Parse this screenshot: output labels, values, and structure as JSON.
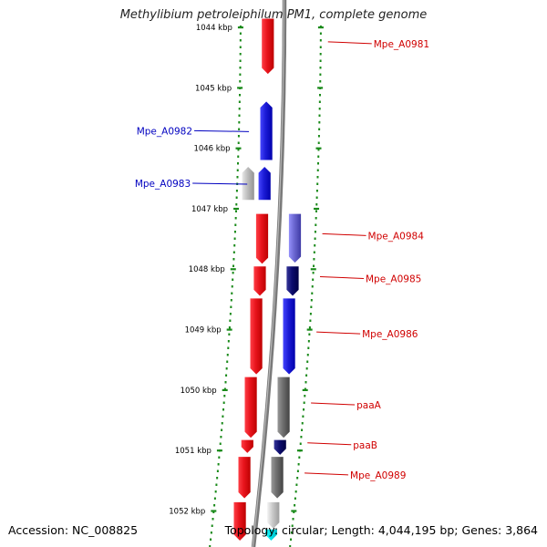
{
  "title": "Methylibium petroleiphilum PM1, complete genome",
  "footer": {
    "accession_label": "Accession:",
    "accession": "NC_008825",
    "topology_label": "Topology:",
    "topology": "circular;",
    "length_label": "Length:",
    "length": "4,044,195 bp;",
    "genes_label": "Genes:",
    "genes": "3,864"
  },
  "ticks": [
    {
      "label": "1044 kbp",
      "kbp": 1044
    },
    {
      "label": "1045 kbp",
      "kbp": 1045
    },
    {
      "label": "1046 kbp",
      "kbp": 1046
    },
    {
      "label": "1047 kbp",
      "kbp": 1047
    },
    {
      "label": "1048 kbp",
      "kbp": 1048
    },
    {
      "label": "1049 kbp",
      "kbp": 1049
    },
    {
      "label": "1050 kbp",
      "kbp": 1050
    },
    {
      "label": "1051 kbp",
      "kbp": 1051
    },
    {
      "label": "1052 kbp",
      "kbp": 1052
    }
  ],
  "genes": [
    {
      "name": "Mpe_A0981",
      "strand": "reverse",
      "track": "inner",
      "start_kbp": 1043.85,
      "end_kbp": 1044.78,
      "color": "#e8141c",
      "label_side": "right"
    },
    {
      "name": "Mpe_A0982",
      "strand": "forward",
      "track": "inner",
      "start_kbp": 1045.22,
      "end_kbp": 1046.2,
      "color": "#1b1bd6",
      "label_side": "left"
    },
    {
      "name": "Mpe_A0983",
      "strand": "forward",
      "track": "inner",
      "start_kbp": 1046.3,
      "end_kbp": 1046.86,
      "color": "#1b1bd6",
      "label_side": "left"
    },
    {
      "name": "",
      "strand": "forward",
      "track": "outer",
      "start_kbp": 1046.3,
      "end_kbp": 1046.86,
      "color": "#bdbdbd",
      "label_side": "none"
    },
    {
      "name": "",
      "strand": "reverse",
      "track": "inner",
      "start_kbp": 1047.08,
      "end_kbp": 1047.92,
      "color": "#e8141c",
      "label_side": "none"
    },
    {
      "name": "Mpe_A0984",
      "strand": "reverse",
      "track": "outer2",
      "start_kbp": 1047.08,
      "end_kbp": 1047.9,
      "color": "#6a66d0",
      "label_side": "right"
    },
    {
      "name": "",
      "strand": "reverse",
      "track": "inner",
      "start_kbp": 1047.95,
      "end_kbp": 1048.45,
      "color": "#e8141c",
      "label_side": "none"
    },
    {
      "name": "Mpe_A0985",
      "strand": "reverse",
      "track": "outer2",
      "start_kbp": 1047.95,
      "end_kbp": 1048.45,
      "color": "#0c0c6e",
      "label_side": "right"
    },
    {
      "name": "",
      "strand": "reverse",
      "track": "inner",
      "start_kbp": 1048.48,
      "end_kbp": 1049.75,
      "color": "#e8141c",
      "label_side": "none"
    },
    {
      "name": "Mpe_A0986",
      "strand": "reverse",
      "track": "outer2",
      "start_kbp": 1048.48,
      "end_kbp": 1049.75,
      "color": "#1b1bd6",
      "label_side": "right"
    },
    {
      "name": "",
      "strand": "reverse",
      "track": "inner",
      "start_kbp": 1049.78,
      "end_kbp": 1050.8,
      "color": "#e8141c",
      "label_side": "none"
    },
    {
      "name": "paaA",
      "strand": "reverse",
      "track": "outer2",
      "start_kbp": 1049.78,
      "end_kbp": 1050.8,
      "color": "#6e6e6e",
      "label_side": "right"
    },
    {
      "name": "",
      "strand": "reverse",
      "track": "inner",
      "start_kbp": 1050.82,
      "end_kbp": 1051.05,
      "color": "#e8141c",
      "label_side": "none"
    },
    {
      "name": "paaB",
      "strand": "reverse",
      "track": "outer2",
      "start_kbp": 1050.82,
      "end_kbp": 1051.08,
      "color": "#0c0c6e",
      "label_side": "right"
    },
    {
      "name": "",
      "strand": "reverse",
      "track": "inner",
      "start_kbp": 1051.1,
      "end_kbp": 1051.8,
      "color": "#e8141c",
      "label_side": "none"
    },
    {
      "name": "Mpe_A0989",
      "strand": "reverse",
      "track": "outer2",
      "start_kbp": 1051.1,
      "end_kbp": 1051.8,
      "color": "#6e6e6e",
      "label_side": "right"
    },
    {
      "name": "",
      "strand": "reverse",
      "track": "inner",
      "start_kbp": 1051.85,
      "end_kbp": 1052.5,
      "color": "#e8141c",
      "label_side": "none"
    },
    {
      "name": "",
      "strand": "reverse",
      "track": "outer2",
      "start_kbp": 1051.85,
      "end_kbp": 1052.3,
      "color": "#c8c8c8",
      "label_side": "none"
    },
    {
      "name": "",
      "strand": "reverse",
      "track": "outer2",
      "start_kbp": 1052.3,
      "end_kbp": 1052.5,
      "color": "#00e5ee",
      "label_side": "none"
    }
  ],
  "colors": {
    "backbone": "#7a7a7a",
    "tick_mark": "#1a8a1a",
    "forward_label": "#0000c0",
    "reverse_label": "#d00000",
    "tick_label": "#000000"
  }
}
